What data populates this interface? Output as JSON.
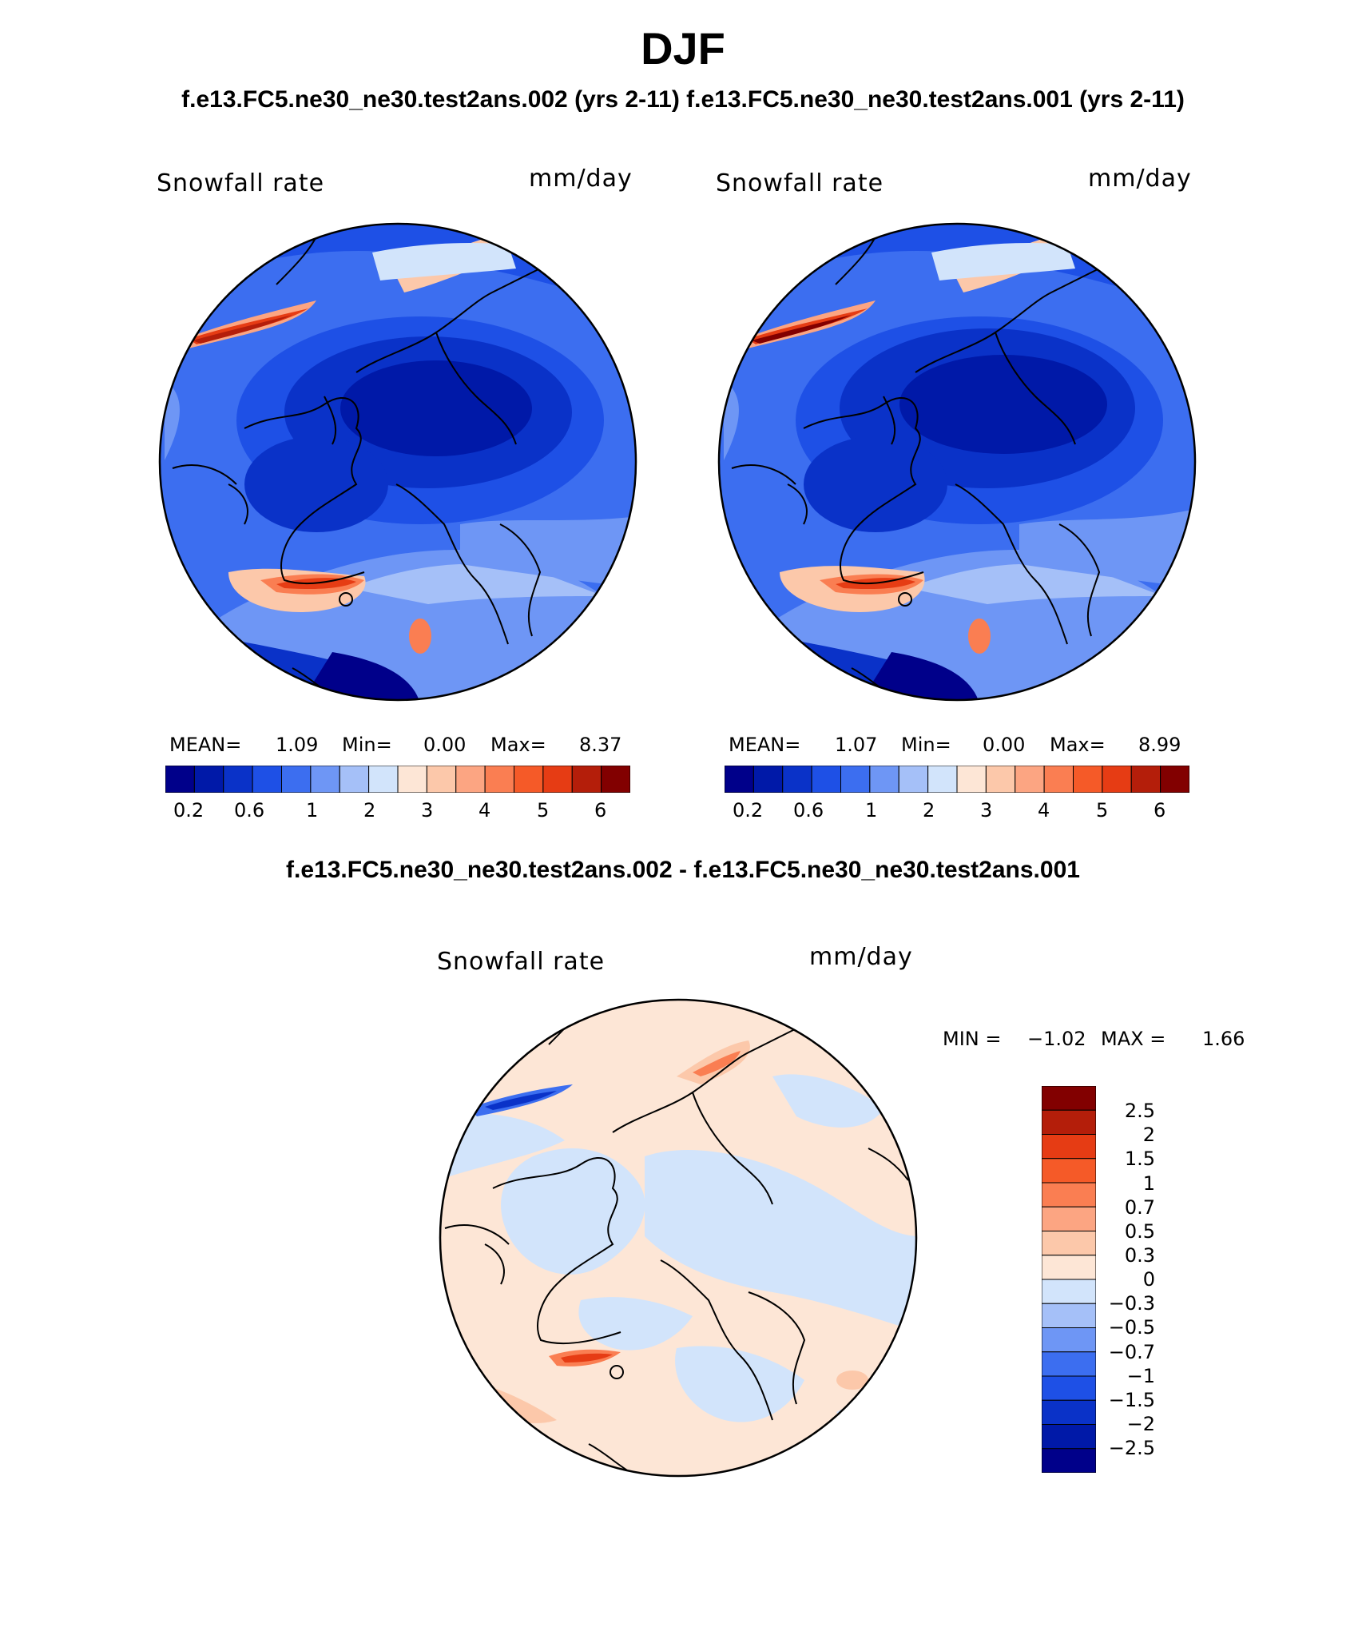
{
  "season": "DJF",
  "subtitle": "f.e13.FC5.ne30_ne30.test2ans.002 (yrs 2-11) f.e13.FC5.ne30_ne30.test2ans.001 (yrs 2-11)",
  "diff_title": "f.e13.FC5.ne30_ne30.test2ans.002 - f.e13.FC5.ne30_ne30.test2ans.001",
  "panels": [
    {
      "variable": "Snowfall rate",
      "units": "mm/day",
      "stats": {
        "mean_label": "MEAN=",
        "mean": "1.09",
        "min_label": "Min=",
        "min": "0.00",
        "max_label": "Max=",
        "max": "8.37"
      }
    },
    {
      "variable": "Snowfall rate",
      "units": "mm/day",
      "stats": {
        "mean_label": "MEAN=",
        "mean": "1.07",
        "min_label": "Min=",
        "min": "0.00",
        "max_label": "Max=",
        "max": "8.99"
      }
    }
  ],
  "diff_panel": {
    "variable": "Snowfall rate",
    "units": "mm/day",
    "min_label": "MIN =",
    "min": "−1.02",
    "max_label": "MAX =",
    "max": "1.66"
  },
  "colorbar_h": {
    "colors": [
      "#00008a",
      "#0019a8",
      "#0a32c8",
      "#1e50e6",
      "#3c6ef0",
      "#6e96f5",
      "#a5c0f8",
      "#d2e4fb",
      "#fde6d6",
      "#fcc8aa",
      "#fca582",
      "#fa7e52",
      "#f55a28",
      "#e63c14",
      "#b41e0a",
      "#820000"
    ],
    "tick_labels": [
      "0.2",
      "0.6",
      "1",
      "2",
      "3",
      "4",
      "5",
      "6"
    ]
  },
  "colorbar_v": {
    "colors": [
      "#820000",
      "#b41e0a",
      "#e63c14",
      "#f55a28",
      "#fa7e52",
      "#fca582",
      "#fcc8aa",
      "#fde6d6",
      "#d2e4fb",
      "#a5c0f8",
      "#6e96f5",
      "#3c6ef0",
      "#1e50e6",
      "#0a32c8",
      "#0019a8",
      "#00008a"
    ],
    "tick_labels": [
      "2.5",
      "2",
      "1.5",
      "1",
      "0.7",
      "0.5",
      "0.3",
      "0",
      "−0.3",
      "−0.5",
      "−0.7",
      "−1",
      "−1.5",
      "−2",
      "−2.5"
    ]
  }
}
